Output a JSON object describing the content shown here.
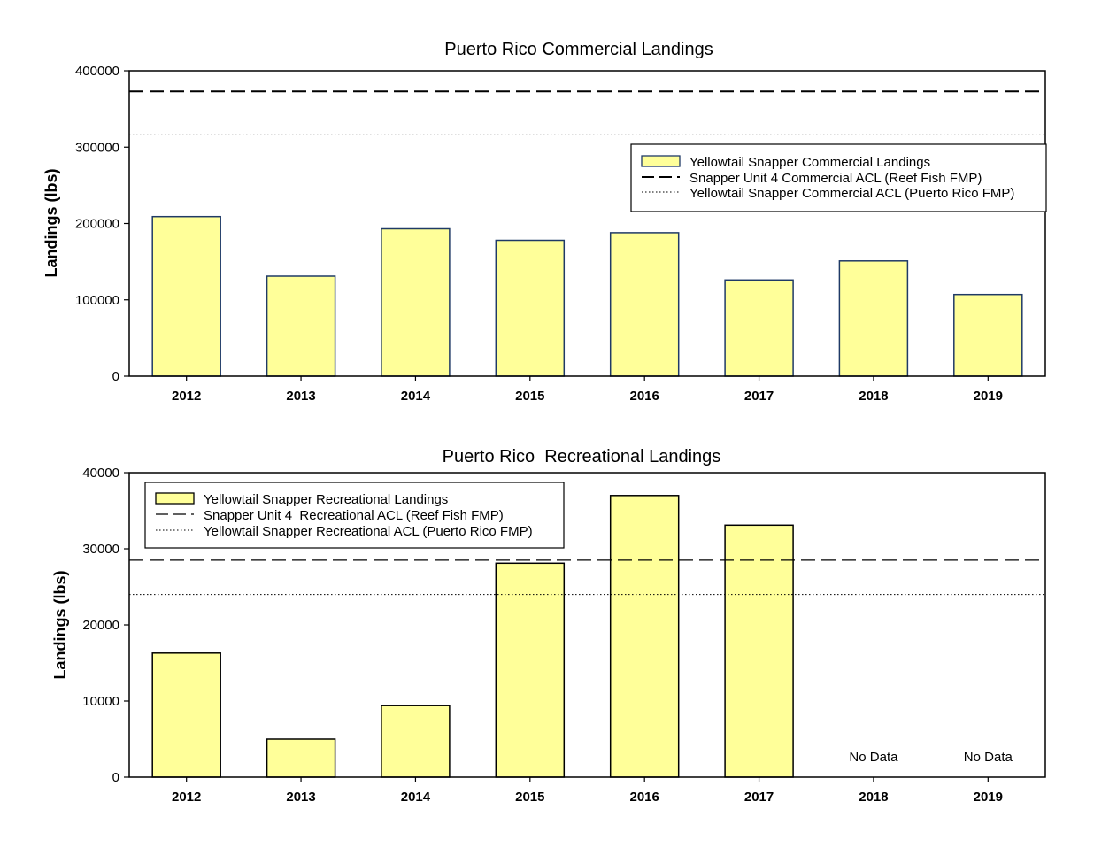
{
  "colors": {
    "bar_fill": "#FFFF99",
    "bar_stroke_commercial": "#1F3A66",
    "bar_stroke_recreational": "#000000",
    "line": "#000000"
  },
  "chart_data": [
    {
      "type": "bar",
      "title": "Puerto Rico Commercial Landings",
      "xlabel": "",
      "ylabel": "Landings (lbs)",
      "categories": [
        "2012",
        "2013",
        "2014",
        "2015",
        "2016",
        "2017",
        "2018",
        "2019"
      ],
      "series": [
        {
          "name": "Yellowtail Snapper Commercial Landings",
          "values": [
            209000,
            131000,
            193000,
            178000,
            188000,
            126000,
            151000,
            107000
          ]
        }
      ],
      "reference_lines": [
        {
          "name": "Snapper Unit 4 Commercial ACL (Reef Fish FMP)",
          "value": 373000,
          "style": "dashed"
        },
        {
          "name": "Yellowtail Snapper Commercial ACL (Puerto Rico FMP)",
          "value": 316000,
          "style": "dotted"
        }
      ],
      "ylim": [
        0,
        400000
      ],
      "yticks": [
        "0",
        "100000",
        "200000",
        "300000",
        "400000"
      ],
      "legend_position": "right",
      "annotations": []
    },
    {
      "type": "bar",
      "title": "Puerto Rico  Recreational Landings",
      "xlabel": "",
      "ylabel": "Landings (lbs)",
      "categories": [
        "2012",
        "2013",
        "2014",
        "2015",
        "2016",
        "2017",
        "2018",
        "2019"
      ],
      "series": [
        {
          "name": "Yellowtail Snapper Recreational Landings",
          "values": [
            16300,
            5000,
            9400,
            28100,
            37000,
            33100,
            null,
            null
          ]
        }
      ],
      "reference_lines": [
        {
          "name": "Snapper Unit 4  Recreational ACL (Reef Fish FMP)",
          "value": 28500,
          "style": "dashed"
        },
        {
          "name": "Yellowtail Snapper Recreational ACL (Puerto Rico FMP)",
          "value": 24000,
          "style": "dotted"
        }
      ],
      "ylim": [
        0,
        40000
      ],
      "yticks": [
        "0",
        "10000",
        "20000",
        "30000",
        "40000"
      ],
      "legend_position": "top-left",
      "annotations": [
        {
          "category": "2018",
          "text": "No Data"
        },
        {
          "category": "2019",
          "text": "No Data"
        }
      ]
    }
  ]
}
